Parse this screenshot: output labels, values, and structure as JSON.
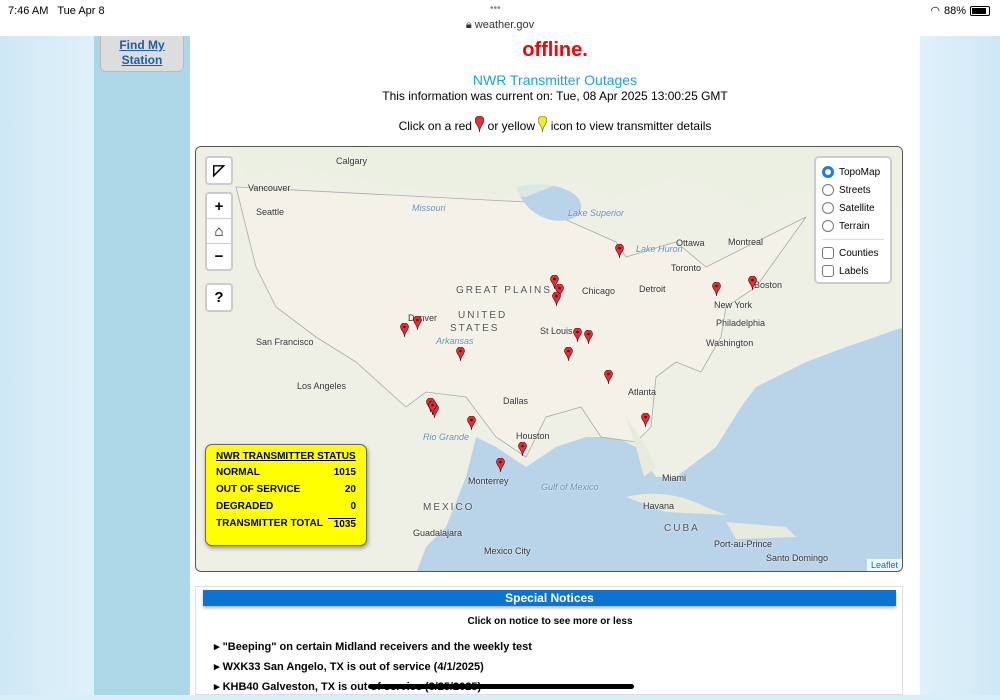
{
  "statusbar": {
    "time": "7:46 AM",
    "date": "Tue Apr 8",
    "url": "weather.gov",
    "battery": "88%",
    "battery_level": 0.88
  },
  "sidebar": {
    "find_station": "Find My Station"
  },
  "main": {
    "offline_text": "offline.",
    "title": "NWR Transmitter Outages",
    "current": "This information was current on: Tue, 08 Apr 2025 13:00:25 GMT",
    "click_pre": "Click on a red",
    "click_mid": "or yellow",
    "click_post": "icon to view transmitter details"
  },
  "map": {
    "layers": [
      "TopoMap",
      "Streets",
      "Satellite",
      "Terrain"
    ],
    "selected_layer": "TopoMap",
    "overlays": [
      "Counties",
      "Labels"
    ],
    "controls": {
      "zoom_in": "+",
      "zoom_out": "−",
      "help": "?"
    },
    "attribution": "Leaflet",
    "labels": {
      "calgary": "Calgary",
      "vancouver": "Vancouver",
      "seattle": "Seattle",
      "denver": "Denver",
      "sf": "San Francisco",
      "la": "Los Angeles",
      "dallas": "Dallas",
      "houston": "Houston",
      "chicago": "Chicago",
      "detroit": "Detroit",
      "toronto": "Toronto",
      "ottawa": "Ottawa",
      "montreal": "Montreal",
      "boston": "Boston",
      "ny": "New York",
      "phil": "Philadelphia",
      "wash": "Washington",
      "atlanta": "Atlanta",
      "miami": "Miami",
      "stlouis": "St Louis",
      "monterrey": "Monterrey",
      "mexico": "MEXICO",
      "guadalajara": "Guadalajara",
      "mexcity": "Mexico City",
      "havana": "Havana",
      "cuba": "CUBA",
      "pap": "Port-au-Prince",
      "sd": "Santo Domingo",
      "plains": "GREAT PLAINS",
      "us1": "UNITED",
      "us2": "STATES",
      "gulf": "Gulf of Mexico",
      "superior": "Lake Superior",
      "huron": "Lake Huron",
      "missouri": "Missouri",
      "arkansas": "Arkansas",
      "rio": "Rio Grande"
    },
    "marker_color": "#e0303a"
  },
  "status": {
    "title": "NWR TRANSMITTER STATUS",
    "rows": [
      {
        "label": "NORMAL",
        "value": "1015"
      },
      {
        "label": "OUT OF SERVICE",
        "value": "20"
      },
      {
        "label": "DEGRADED",
        "value": "0"
      },
      {
        "label": "TRANSMITTER TOTAL",
        "value": "1035"
      }
    ]
  },
  "notices": {
    "header": "Special Notices",
    "sub": "Click on notice to see more or less",
    "items": [
      "\"Beeping\" on certain Midland receivers and the weekly test",
      "WXK33 San Angelo, TX is out of service (4/1/2025)",
      "KHB40 Galveston, TX is out of service (3/25/2025)"
    ]
  }
}
